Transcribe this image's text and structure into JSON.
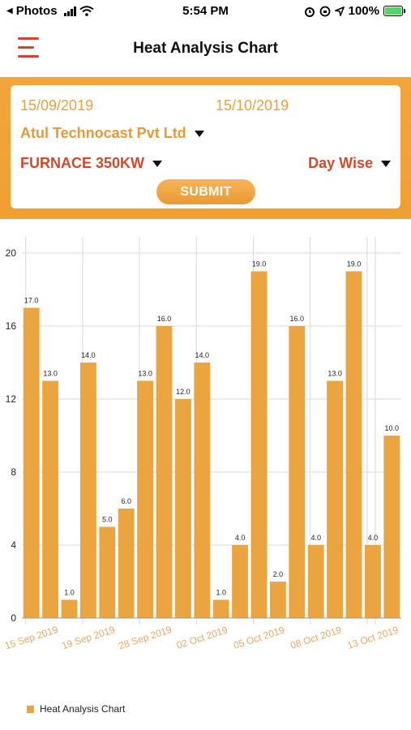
{
  "status_bar": {
    "back_app": "Photos",
    "time": "5:54 PM",
    "battery": "100%"
  },
  "header": {
    "title": "Heat Analysis Chart"
  },
  "filters": {
    "from_date": "15/09/2019",
    "to_date": "15/10/2019",
    "company": "Atul Technocast Pvt Ltd",
    "furnace": "FURNACE 350KW",
    "period": "Day Wise",
    "submit_label": "SUBMIT"
  },
  "colors": {
    "accent": "#f0a030",
    "bar": "#eaa540",
    "dropdown_text": "#d24a2c",
    "date_text": "#e9a23e"
  },
  "chart_data": {
    "type": "bar",
    "values": [
      17.0,
      13.0,
      1.0,
      14.0,
      5.0,
      6.0,
      13.0,
      16.0,
      12.0,
      14.0,
      1.0,
      4.0,
      19.0,
      2.0,
      16.0,
      4.0,
      13.0,
      19.0,
      4.0,
      10.0
    ],
    "data_labels": [
      "17.0",
      "13.0",
      "1.0",
      "14.0",
      "5.0",
      "6.0",
      "13.0",
      "16.0",
      "12.0",
      "14.0",
      "1.0",
      "4.0",
      "19.0",
      "2.0",
      "16.0",
      "4.0",
      "13.0",
      "19.0",
      "4.0",
      "10.0"
    ],
    "x_tick_labels": [
      "15 Sep 2019",
      "19 Sep 2019",
      "28 Sep 2019",
      "02 Oct 2019",
      "05 Oct 2019",
      "08 Oct 2019",
      "13 Oct 2019"
    ],
    "x_tick_bar_index": [
      0,
      3,
      6,
      9,
      12,
      15,
      18
    ],
    "y_ticks": [
      "0",
      "4",
      "8",
      "12",
      "16",
      "20"
    ],
    "ylim": [
      0,
      20
    ],
    "legend": [
      "Heat Analysis Chart"
    ],
    "grid": true,
    "legend_position": "bottom-left"
  }
}
